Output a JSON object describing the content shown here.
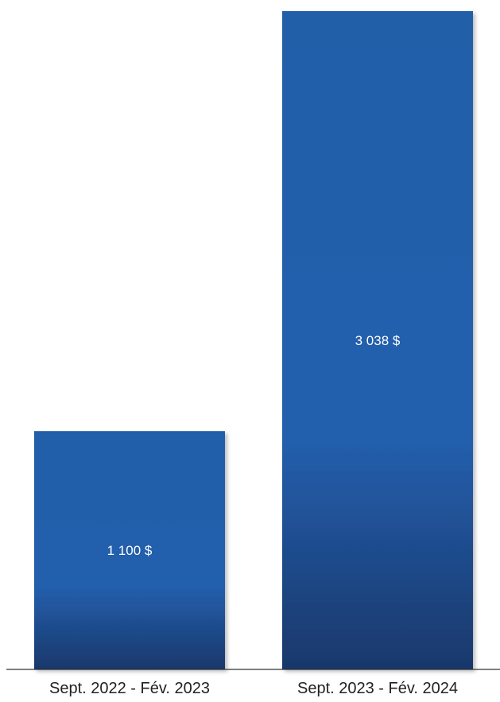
{
  "chart_data": {
    "type": "bar",
    "categories": [
      "Sept. 2022 - Fév. 2023",
      "Sept. 2023 - Fév. 2024"
    ],
    "values": [
      1100,
      3038
    ],
    "value_labels": [
      "1 100 $",
      "3 038 $"
    ],
    "title": "",
    "xlabel": "",
    "ylabel": "",
    "ylim": [
      0,
      3038
    ],
    "grid": false,
    "legend": "none",
    "colors": {
      "bar_top": "#235ea9",
      "bar_mid": "#245fad",
      "bar_bottom": "#19386b",
      "axis": "#333333"
    }
  }
}
